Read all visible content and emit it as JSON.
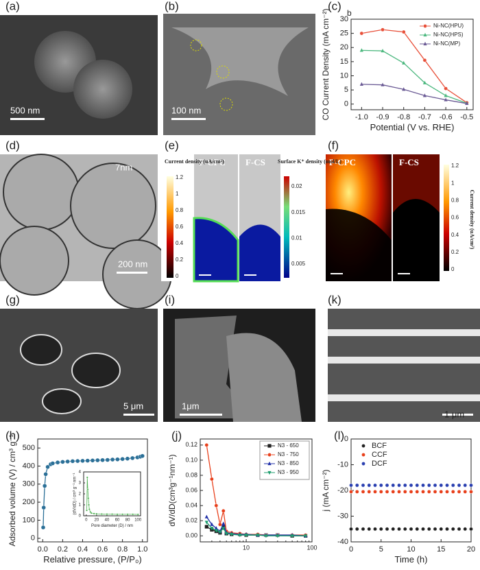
{
  "panels": [
    {
      "label": "(a)",
      "scale_bar": "500 nm"
    },
    {
      "label": "(b)",
      "scale_bar": "100 nm"
    },
    {
      "label": "(c)"
    },
    {
      "label": "(d)",
      "scale_bar": "200 nm",
      "annotation": "7nm"
    },
    {
      "label": "(e)",
      "texts": [
        "F-CPC",
        "F-CS"
      ],
      "colorbars": [
        {
          "title": "Current density (uA/cm²)",
          "ticks": [
            0,
            0.2,
            0.4,
            0.6,
            0.8,
            1,
            1.2
          ]
        },
        {
          "title": "Surface K⁺ density (mol/L)",
          "ticks": [
            0.005,
            0.01,
            0.015,
            0.02
          ]
        }
      ]
    },
    {
      "label": "(f)",
      "texts": [
        "F-CPC",
        "F-CS"
      ],
      "colorbars": [
        {
          "title": "Current density (uA/cm²)",
          "ticks": [
            0,
            0.2,
            0.4,
            0.6,
            0.8,
            1,
            1.2
          ]
        }
      ]
    },
    {
      "label": "(g)",
      "scale_bar": "5 μm"
    },
    {
      "label": "(i)",
      "scale_bar": "1μm"
    },
    {
      "label": "(k)",
      "scale_bar": "1 μm"
    },
    {
      "label": "(h)"
    },
    {
      "label": "(j)"
    },
    {
      "label": "(l)"
    }
  ],
  "chart_data": [
    {
      "type": "line",
      "annotation": "b",
      "xlabel": "Potential (V vs. RHE)",
      "ylabel": "CO Current Density (mA cm⁻²)",
      "x": [
        -1,
        -0.9,
        -0.8,
        -0.7,
        -0.6,
        -0.5
      ],
      "series": [
        {
          "name": "Ni-NC(HPU)",
          "color": "#e8503a",
          "marker": "circle",
          "values": [
            25,
            26.3,
            25.5,
            15.5,
            5.5,
            0.5
          ]
        },
        {
          "name": "Ni-NC(HPS)",
          "color": "#4db87f",
          "marker": "triangle",
          "values": [
            19,
            18.8,
            14.5,
            7.5,
            3,
            0.3
          ]
        },
        {
          "name": "Ni-NC(MP)",
          "color": "#6b5b95",
          "marker": "triangle",
          "values": [
            7,
            6.8,
            5.2,
            3,
            1.5,
            0.2
          ]
        }
      ],
      "xlim": [
        -1.05,
        -0.47
      ],
      "xticks": [
        {
          "value": -1,
          "label": "-1.0"
        },
        -0.9,
        -0.8,
        -0.7,
        -0.6,
        -0.5
      ],
      "ylim": [
        -2,
        30
      ],
      "yticks": [
        0,
        5,
        10,
        15,
        20,
        25,
        30
      ],
      "legend": "upper right"
    },
    {
      "type": "line",
      "xlabel": "Relative pressure, (P/P₀)",
      "ylabel": "Adsorbed volume (V) / cm³ g⁻¹",
      "x": [
        0.005,
        0.01,
        0.02,
        0.03,
        0.05,
        0.08,
        0.1,
        0.15,
        0.2,
        0.25,
        0.3,
        0.35,
        0.4,
        0.45,
        0.5,
        0.55,
        0.6,
        0.65,
        0.7,
        0.75,
        0.8,
        0.85,
        0.9,
        0.95,
        0.98,
        1
      ],
      "values": [
        60,
        170,
        290,
        355,
        395,
        410,
        415,
        420,
        423,
        425,
        427,
        428,
        429,
        430,
        431,
        432,
        433,
        434,
        436,
        437,
        439,
        441,
        444,
        448,
        452,
        456
      ],
      "color": "#2a6f97",
      "marker": "circle",
      "xlim": [
        -0.05,
        1.05
      ],
      "xticks": [
        {
          "value": 0,
          "label": "0.0"
        },
        0.2,
        0.4,
        0.6,
        0.8,
        {
          "value": 1,
          "label": "1.0"
        }
      ],
      "ylim": [
        -20,
        550
      ],
      "yticks": [
        0,
        100,
        200,
        300,
        400,
        500
      ]
    },
    {
      "type": "line",
      "xlabel": "Pore diameter (D) / nm",
      "ylabel": "(dV/dD) / cm³ g⁻¹ nm⁻¹",
      "x": [
        1,
        2,
        3,
        4,
        5,
        6,
        8,
        10,
        15,
        20,
        30,
        40,
        50,
        60,
        70,
        80,
        90,
        100
      ],
      "values": [
        0.5,
        3.5,
        2.4,
        1.6,
        1,
        0.6,
        0.35,
        0.25,
        0.2,
        0.18,
        0.16,
        0.15,
        0.15,
        0.14,
        0.14,
        0.14,
        0.14,
        0.13
      ],
      "color": "#4caf50",
      "marker": "circle",
      "xlim": [
        -5,
        105
      ],
      "xticks": [
        0,
        20,
        40,
        60,
        80,
        100
      ],
      "ylim": [
        0,
        4
      ],
      "yticks": [
        0,
        1,
        2,
        3,
        4
      ]
    },
    {
      "type": "line",
      "ylabel": "dV/dD(cm³g⁻¹nm⁻¹)",
      "xscale": "log",
      "x": [
        2.5,
        3,
        3.5,
        4,
        4.5,
        5,
        6,
        8,
        10,
        15,
        20,
        30,
        50,
        80
      ],
      "series": [
        {
          "name": "N3 - 650",
          "color": "#222222",
          "marker": "square",
          "values": [
            0.012,
            0.008,
            0.006,
            0.004,
            0.012,
            0.003,
            0.002,
            0.002,
            0.001,
            0.001,
            0.001,
            0.001,
            0,
            0
          ]
        },
        {
          "name": "N3 - 750",
          "color": "#e8401c",
          "marker": "circle",
          "values": [
            0.12,
            0.075,
            0.04,
            0.015,
            0.033,
            0.006,
            0.004,
            0.003,
            0.002,
            0.002,
            0.001,
            0.001,
            0.001,
            0.001
          ]
        },
        {
          "name": "N3 - 850",
          "color": "#1f2fa8",
          "marker": "triangle",
          "values": [
            0.025,
            0.015,
            0.01,
            0.006,
            0.016,
            0.004,
            0.003,
            0.002,
            0.002,
            0.001,
            0.001,
            0.001,
            0.001,
            0
          ]
        },
        {
          "name": "N3 - 950",
          "color": "#1e9e6e",
          "marker": "triangle-down",
          "values": [
            0.018,
            0.01,
            0.007,
            0.005,
            0.01,
            0.003,
            0.002,
            0.001,
            0.001,
            0.001,
            0,
            0,
            0,
            0
          ]
        }
      ],
      "xlim": [
        2,
        100
      ],
      "xticks": [
        10,
        100
      ],
      "ylim": [
        -0.008,
        0.128
      ],
      "yticks": [
        {
          "value": 0,
          "label": "0.00"
        },
        0.02,
        0.04,
        0.06,
        0.08,
        {
          "value": 0.1,
          "label": "0.10"
        },
        0.12
      ],
      "legend": "upper right"
    },
    {
      "type": "scatter",
      "xlabel": "Time (h)",
      "ylabel": "j (mA cm⁻²)",
      "x": [
        0,
        1,
        2,
        3,
        4,
        5,
        6,
        7,
        8,
        9,
        10,
        11,
        12,
        13,
        14,
        15,
        16,
        17,
        18,
        19,
        20
      ],
      "series": [
        {
          "name": "BCF",
          "color": "#222222",
          "marker": "circle",
          "values": [
            -35,
            -35,
            -35,
            -35,
            -35,
            -35,
            -35,
            -35,
            -35,
            -35,
            -35,
            -35,
            -35,
            -35,
            -35,
            -35,
            -35,
            -35,
            -35,
            -35,
            -35
          ]
        },
        {
          "name": "CCF",
          "color": "#e8401c",
          "marker": "circle",
          "values": [
            -20.5,
            -20.5,
            -20.5,
            -20.5,
            -20.5,
            -20.5,
            -20.5,
            -20.5,
            -20.5,
            -20.5,
            -20.5,
            -20.5,
            -20.5,
            -20.5,
            -20.5,
            -20.5,
            -20.5,
            -20.5,
            -20.5,
            -20.5,
            -20.5
          ]
        },
        {
          "name": "DCF",
          "color": "#2a3fb0",
          "marker": "circle",
          "values": [
            -18,
            -18,
            -18,
            -18,
            -18,
            -18,
            -18,
            -18,
            -18,
            -18,
            -18,
            -18,
            -18,
            -18,
            -18,
            -18,
            -18,
            -18,
            -18,
            -18,
            -18
          ]
        }
      ],
      "xlim": [
        0,
        20
      ],
      "xticks": [
        0,
        5,
        10,
        15,
        20
      ],
      "ylim": [
        -40,
        0
      ],
      "yticks": [
        0,
        -10,
        -20,
        -30,
        -40
      ],
      "legend": "upper left"
    }
  ]
}
